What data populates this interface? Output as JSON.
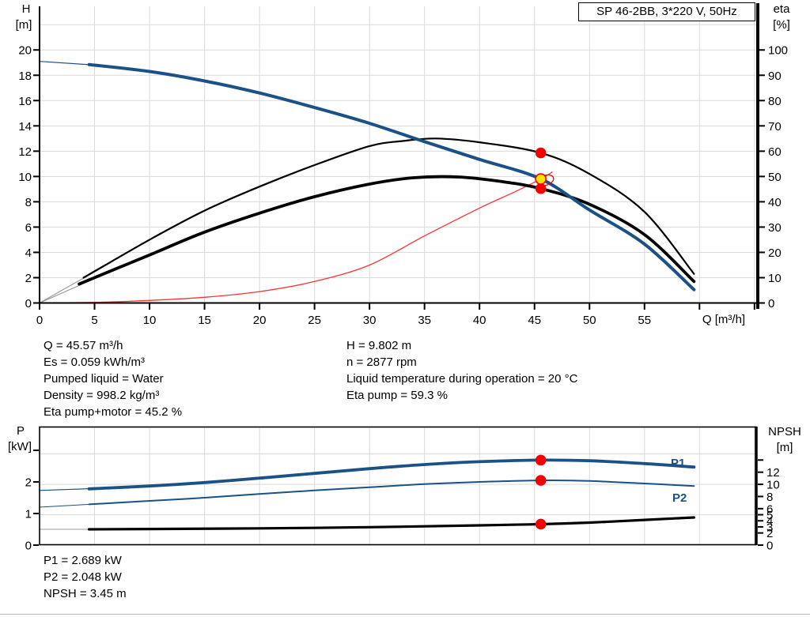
{
  "title_box": {
    "text": "SP 46-2BB, 3*220 V, 50Hz"
  },
  "colors": {
    "curve_blue": "#1A5287",
    "curve_black": "#000000",
    "curve_red": "#FF3232",
    "marker_red": "#F50000",
    "marker_yellow": "#FFE408",
    "grid": "#DADADA",
    "helper_gray": "#9A9A9A",
    "label_blue": "#1A5287",
    "axis_black": "#000000"
  },
  "top_chart_labels": {
    "y_left_1": "H",
    "y_left_2": "[m]",
    "y_right_1": "eta",
    "y_right_2": "[%]",
    "x_label": "Q [m³/h]"
  },
  "bottom_chart_labels": {
    "y_left_1": "P",
    "y_left_2": "[kW]",
    "y_right_1": "NPSH",
    "y_right_2": "[m]"
  },
  "info_top": {
    "left_lines": [
      "Q = 45.57 m³/h",
      "Es = 0.059 kWh/m³",
      "Pumped liquid = Water",
      "Density = 998.2 kg/m³",
      "Eta pump+motor = 45.2 %"
    ],
    "right_lines": [
      "H = 9.802 m",
      "n = 2877 rpm",
      "Liquid temperature during operation = 20 °C",
      "Eta pump = 59.3 %"
    ]
  },
  "info_bottom": {
    "lines": [
      "P1 = 2.689 kW",
      "P2 = 2.048 kW",
      "NPSH = 3.45 m"
    ]
  },
  "chart_data": [
    {
      "type": "line",
      "title": "SP 46-2BB, 3*220 V, 50Hz",
      "xlabel": "Q [m³/h]",
      "ylabel_left": "H [m]",
      "ylabel_right": "eta [%]",
      "xlim": [
        0,
        65.3
      ],
      "h_lim": [
        0,
        23.45
      ],
      "eta_lim": [
        0,
        117.25
      ],
      "grid": true,
      "x_ticks": [
        0,
        5,
        10,
        15,
        20,
        25,
        30,
        35,
        40,
        45,
        50,
        55
      ],
      "x_ticks_unlabeled": [
        60,
        65
      ],
      "h_ticks": [
        0,
        2,
        4,
        6,
        8,
        10,
        12,
        14,
        16,
        18,
        20
      ],
      "eta_ticks": [
        0,
        10,
        20,
        30,
        40,
        50,
        60,
        70,
        80,
        90,
        100
      ],
      "grid_x_step": 5,
      "grid_h_step": 2,
      "helper_lines": [
        {
          "from": [
            0,
            0
          ],
          "to": [
            6.5,
            3.2
          ],
          "axis": "h"
        },
        {
          "from": [
            0,
            0
          ],
          "to": [
            6.5,
            2.5
          ],
          "axis": "h"
        }
      ],
      "series": [
        {
          "name": "System curve",
          "axis": "h",
          "color": "red",
          "width": 1.3,
          "points": [
            [
              0,
              0
            ],
            [
              5,
              0.05
            ],
            [
              10,
              0.2
            ],
            [
              15,
              0.45
            ],
            [
              20,
              0.9
            ],
            [
              25,
              1.7
            ],
            [
              30,
              3.0
            ],
            [
              35,
              5.3
            ],
            [
              40,
              7.5
            ],
            [
              43,
              8.7
            ],
            [
              45.57,
              9.8
            ],
            [
              46.6,
              10.35
            ]
          ]
        },
        {
          "name": "Eta pump",
          "axis": "eta",
          "color": "black",
          "width": 2.2,
          "lead": [
            [
              0,
              0
            ],
            [
              6.5,
              16
            ]
          ],
          "lead_width": 1,
          "lead_color": "gray",
          "points": [
            [
              4,
              10
            ],
            [
              10,
              25
            ],
            [
              15,
              36.5
            ],
            [
              20,
              46
            ],
            [
              25,
              54.5
            ],
            [
              30,
              62
            ],
            [
              33,
              64
            ],
            [
              36,
              65
            ],
            [
              40,
              63.5
            ],
            [
              45.57,
              59.3
            ],
            [
              50,
              51
            ],
            [
              55,
              36
            ],
            [
              59.5,
              11.5
            ]
          ]
        },
        {
          "name": "Eta pump+motor",
          "axis": "eta",
          "color": "black",
          "width": 3.8,
          "lead": [
            [
              0,
              0
            ],
            [
              6.5,
              12.5
            ]
          ],
          "lead_width": 1,
          "lead_color": "gray",
          "points": [
            [
              3.6,
              7.5
            ],
            [
              10,
              19
            ],
            [
              15,
              28
            ],
            [
              20,
              35.5
            ],
            [
              25,
              42
            ],
            [
              30,
              47
            ],
            [
              34,
              49.5
            ],
            [
              38,
              49.8
            ],
            [
              42,
              48
            ],
            [
              45.57,
              45.2
            ],
            [
              50,
              39
            ],
            [
              55,
              27
            ],
            [
              59.5,
              8.5
            ]
          ]
        },
        {
          "name": "H-Q curve",
          "axis": "h",
          "color": "blue",
          "width": 4,
          "lead": [
            [
              0,
              19.1
            ],
            [
              4.8,
              18.82
            ]
          ],
          "lead_width": 1.2,
          "lead_color": "blue",
          "points": [
            [
              4.5,
              18.85
            ],
            [
              10,
              18.3
            ],
            [
              15,
              17.55
            ],
            [
              20,
              16.6
            ],
            [
              25,
              15.45
            ],
            [
              30,
              14.2
            ],
            [
              35,
              12.75
            ],
            [
              40,
              11.35
            ],
            [
              45.57,
              9.802
            ],
            [
              50,
              7.35
            ],
            [
              55,
              4.65
            ],
            [
              59.5,
              1.05
            ]
          ]
        }
      ],
      "markers": [
        {
          "name": "eta-pump-duty",
          "q": 45.57,
          "value": 59.3,
          "axis": "eta",
          "type": "red-dot"
        },
        {
          "name": "duty-point-ring",
          "q": 46.0,
          "value": 9.7,
          "axis": "h",
          "type": "red-ellipse"
        },
        {
          "name": "eta-pump-motor-duty",
          "q": 45.57,
          "value": 45.2,
          "axis": "eta",
          "type": "red-dot"
        },
        {
          "name": "duty-point",
          "q": 45.57,
          "value": 9.802,
          "axis": "h",
          "type": "yellow-dot"
        }
      ]
    },
    {
      "type": "line",
      "title": "",
      "xlabel": "",
      "ylabel_left": "P [kW]",
      "ylabel_right": "NPSH [m]",
      "xlim": [
        0,
        65.3
      ],
      "p_lim": [
        0,
        3.75
      ],
      "npsh_lim": [
        0,
        19.5
      ],
      "grid": true,
      "p_ticks": [
        0,
        1,
        2
      ],
      "p_ticks_unlabeled": [
        3
      ],
      "npsh_ticks": [
        12,
        10,
        8,
        6,
        5,
        4,
        3,
        2,
        0
      ],
      "npsh_ticks_unlabeled": [
        14
      ],
      "grid_x_step": 5,
      "grid_npsh_step": 5,
      "series": [
        {
          "name": "P1",
          "axis": "p",
          "color": "blue",
          "width": 3.8,
          "lead": [
            [
              0,
              1.73
            ],
            [
              5,
              1.79
            ]
          ],
          "lead_width": 1.2,
          "lead_color": "blue",
          "points": [
            [
              4.5,
              1.78
            ],
            [
              10,
              1.87
            ],
            [
              15,
              1.98
            ],
            [
              20,
              2.12
            ],
            [
              25,
              2.27
            ],
            [
              30,
              2.42
            ],
            [
              35,
              2.55
            ],
            [
              40,
              2.64
            ],
            [
              45.57,
              2.689
            ],
            [
              50,
              2.67
            ],
            [
              55,
              2.58
            ],
            [
              59.5,
              2.47
            ]
          ]
        },
        {
          "name": "P2",
          "axis": "p",
          "color": "blue",
          "width": 2,
          "lead": [
            [
              0,
              1.2
            ],
            [
              5,
              1.3
            ]
          ],
          "lead_width": 1,
          "lead_color": "blue",
          "points": [
            [
              4.5,
              1.29
            ],
            [
              10,
              1.4
            ],
            [
              15,
              1.5
            ],
            [
              20,
              1.62
            ],
            [
              25,
              1.73
            ],
            [
              30,
              1.83
            ],
            [
              35,
              1.93
            ],
            [
              40,
              2.0
            ],
            [
              45.57,
              2.048
            ],
            [
              50,
              2.03
            ],
            [
              55,
              1.95
            ],
            [
              59.5,
              1.87
            ]
          ]
        },
        {
          "name": "NPSH",
          "axis": "npsh",
          "color": "black",
          "width": 3.2,
          "lead": [
            [
              0,
              2.6
            ],
            [
              5,
              2.6
            ]
          ],
          "lead_width": 1,
          "lead_color": "gray",
          "points": [
            [
              4.5,
              2.6
            ],
            [
              10,
              2.65
            ],
            [
              20,
              2.75
            ],
            [
              30,
              2.95
            ],
            [
              40,
              3.25
            ],
            [
              45.57,
              3.45
            ],
            [
              50,
              3.7
            ],
            [
              55,
              4.15
            ],
            [
              59.5,
              4.55
            ]
          ]
        }
      ],
      "markers": [
        {
          "name": "p1-duty",
          "q": 45.57,
          "value": 2.689,
          "axis": "p",
          "type": "red-dot"
        },
        {
          "name": "p2-duty",
          "q": 45.57,
          "value": 2.048,
          "axis": "p",
          "type": "red-dot"
        },
        {
          "name": "npsh-duty",
          "q": 45.57,
          "value": 3.45,
          "axis": "npsh",
          "type": "red-dot"
        }
      ]
    }
  ]
}
